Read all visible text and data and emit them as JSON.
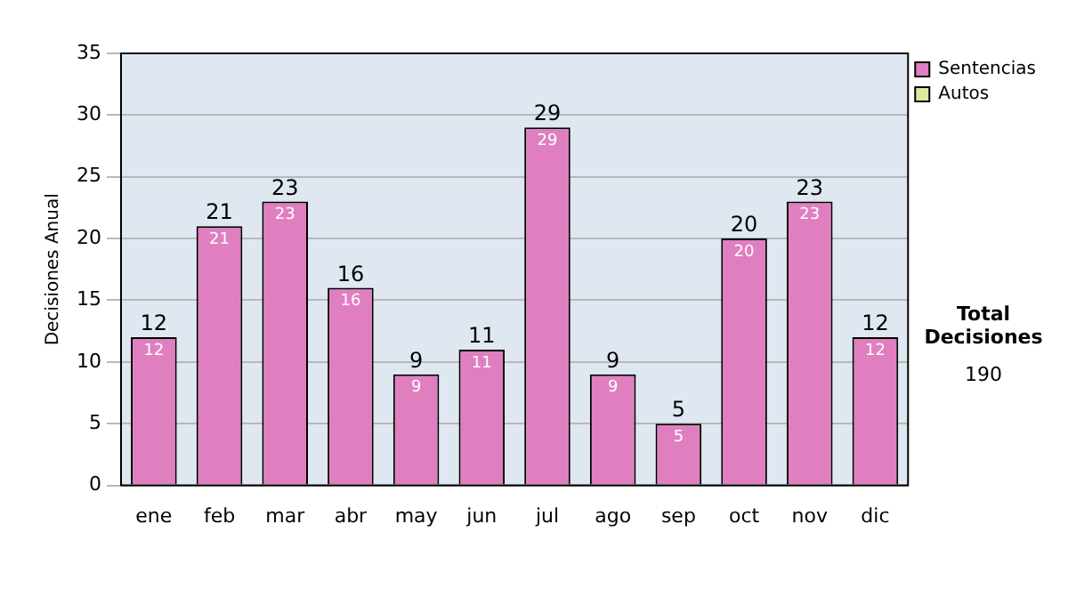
{
  "chart_data": {
    "type": "bar",
    "stacked": true,
    "ylabel": "Decisiones Anual",
    "categories": [
      "ene",
      "feb",
      "mar",
      "abr",
      "may",
      "jun",
      "jul",
      "ago",
      "sep",
      "oct",
      "nov",
      "dic"
    ],
    "series": [
      {
        "name": "Sentencias",
        "color": "#e07fc0",
        "values": [
          12,
          21,
          23,
          16,
          9,
          11,
          29,
          9,
          5,
          20,
          23,
          12
        ],
        "value_labels": [
          "12",
          "21",
          "23",
          "16",
          "9",
          "11",
          "29",
          "9",
          "5",
          "20",
          "23",
          "12"
        ]
      },
      {
        "name": "Autos",
        "color": "#d8eaa0",
        "values": [
          0,
          0,
          0,
          0,
          0,
          0,
          0,
          0,
          0,
          0,
          0,
          0
        ]
      }
    ],
    "totals": [
      "12",
      "21",
      "23",
      "16",
      "9",
      "11",
      "29",
      "9",
      "5",
      "20",
      "23",
      "12"
    ],
    "ylim": [
      0,
      35
    ],
    "yticks": [
      0,
      5,
      10,
      15,
      20,
      25,
      30,
      35
    ],
    "grid": "y",
    "legend": "right",
    "annotations": [
      "Total Decisiones",
      "190"
    ]
  }
}
